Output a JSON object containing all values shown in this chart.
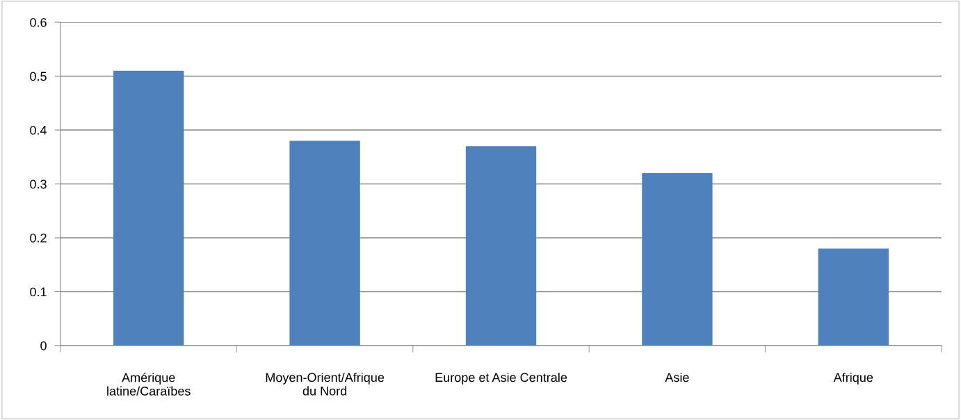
{
  "chart_data": {
    "type": "bar",
    "categories": [
      "Amérique\nlatine/Caraïbes",
      "Moyen-Orient/Afrique\ndu Nord",
      "Europe et Asie Centrale",
      "Asie",
      "Afrique"
    ],
    "values": [
      0.51,
      0.38,
      0.37,
      0.32,
      0.18
    ],
    "color": "#4f81bd",
    "ylim": [
      0,
      0.6
    ],
    "yticks": [
      {
        "value": 0,
        "label": "0"
      },
      0.1,
      0.2,
      0.3,
      0.4,
      0.5,
      0.6
    ],
    "grid": "y",
    "legend": false
  }
}
